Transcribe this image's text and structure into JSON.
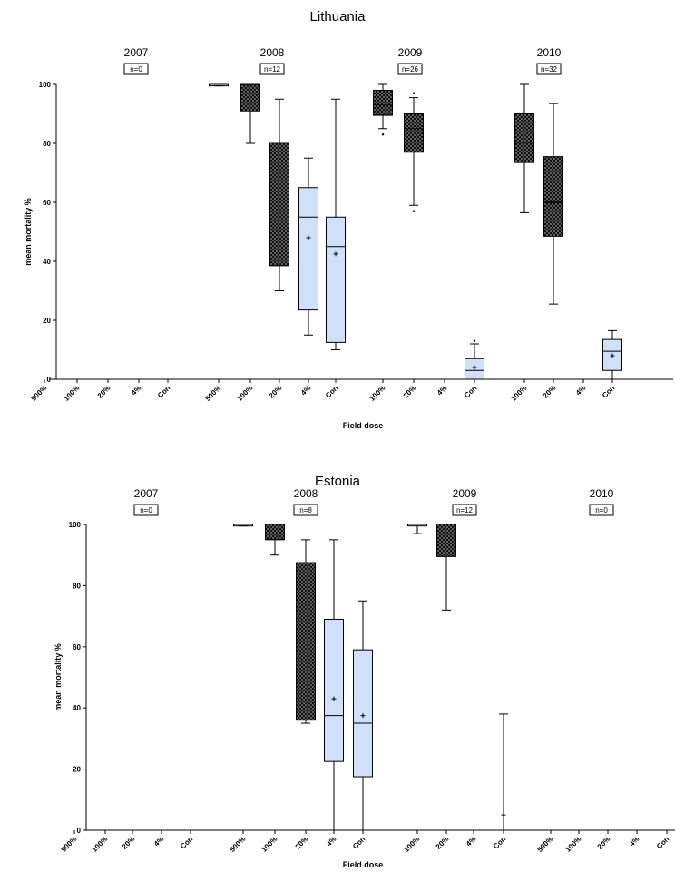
{
  "chart_data": [
    {
      "type": "box",
      "title": "Lithuania",
      "xlabel": "Field dose",
      "ylabel": "mean mortality %",
      "ylim": [
        0,
        100
      ],
      "yticks": [
        0,
        20,
        40,
        60,
        80,
        100
      ],
      "groups": [
        {
          "label": "2007",
          "n": "n=0",
          "categories": [
            "500%",
            "100%",
            "20%",
            "4%",
            "Con"
          ],
          "boxes": [
            null,
            null,
            null,
            null,
            null
          ]
        },
        {
          "label": "2008",
          "n": "n=12",
          "categories": [
            "500%",
            "100%",
            "20%",
            "4%",
            "Con"
          ],
          "boxes": [
            {
              "min": 99.5,
              "q1": 99.5,
              "median": 100,
              "q3": 100,
              "max": 100,
              "fill": "none"
            },
            {
              "min": 80,
              "q1": 91,
              "median": 100,
              "q3": 100,
              "max": 100,
              "fill": "dots"
            },
            {
              "min": 30,
              "q1": 38.5,
              "median": 80,
              "q3": 80,
              "max": 95,
              "fill": "dots"
            },
            {
              "min": 15,
              "q1": 23.5,
              "median": 55,
              "q3": 65,
              "max": 75,
              "mean": 48,
              "fill": "light"
            },
            {
              "min": 10,
              "q1": 12.5,
              "median": 45,
              "q3": 55,
              "max": 95,
              "mean": 42.5,
              "fill": "light"
            }
          ]
        },
        {
          "label": "2009",
          "n": "n=26",
          "categories": [
            "100%",
            "20%",
            "4%",
            "Con"
          ],
          "boxes": [
            {
              "min": 85,
              "q1": 89.5,
              "median": 93,
              "q3": 98,
              "max": 100,
              "outliers": [
                83
              ],
              "fill": "dots"
            },
            {
              "min": 59,
              "q1": 77,
              "median": 85,
              "q3": 90,
              "max": 95.5,
              "outliers": [
                57,
                97
              ],
              "fill": "dots"
            },
            null,
            {
              "min": 0,
              "q1": 0,
              "median": 3,
              "q3": 7,
              "max": 12,
              "mean": 4,
              "outliers": [
                13
              ],
              "fill": "light"
            }
          ]
        },
        {
          "label": "2010",
          "n": "n=32",
          "categories": [
            "100%",
            "20%",
            "4%",
            "Con"
          ],
          "boxes": [
            {
              "min": 56.5,
              "q1": 73.5,
              "median": 80,
              "q3": 90,
              "max": 100,
              "fill": "dots"
            },
            {
              "min": 25.5,
              "q1": 48.5,
              "median": 60,
              "q3": 75.5,
              "max": 93.5,
              "fill": "dots"
            },
            null,
            {
              "min": 0,
              "q1": 3,
              "median": 9.5,
              "q3": 13.5,
              "max": 16.5,
              "mean": 8,
              "fill": "light"
            }
          ]
        }
      ]
    },
    {
      "type": "box",
      "title": "Estonia",
      "xlabel": "Field dose",
      "ylabel": "mean mortality %",
      "ylim": [
        0,
        100
      ],
      "yticks": [
        0,
        20,
        40,
        60,
        80,
        100
      ],
      "groups": [
        {
          "label": "2007",
          "n": "n=0",
          "categories": [
            "500%",
            "100%",
            "20%",
            "4%",
            "Con"
          ],
          "boxes": [
            null,
            null,
            null,
            null,
            null
          ]
        },
        {
          "label": "2008",
          "n": "n=8",
          "categories": [
            "500%",
            "100%",
            "20%",
            "4%",
            "Con"
          ],
          "boxes": [
            {
              "min": 99.5,
              "q1": 99.5,
              "median": 100,
              "q3": 100,
              "max": 100,
              "fill": "none"
            },
            {
              "min": 90,
              "q1": 95,
              "median": 100,
              "q3": 100,
              "max": 100,
              "fill": "dots"
            },
            {
              "min": 35,
              "q1": 36,
              "median": 87.5,
              "q3": 87.5,
              "max": 95,
              "fill": "dots"
            },
            {
              "min": 0,
              "q1": 22.5,
              "median": 37.5,
              "q3": 69,
              "max": 95,
              "mean": 43,
              "fill": "light"
            },
            {
              "min": 0,
              "q1": 17.5,
              "median": 35,
              "q3": 59,
              "max": 75,
              "mean": 37.5,
              "fill": "light"
            }
          ]
        },
        {
          "label": "2009",
          "n": "n=12",
          "categories": [
            "100%",
            "20%",
            "4%",
            "Con"
          ],
          "boxes": [
            {
              "min": 97,
              "q1": 99.5,
              "median": 100,
              "q3": 100,
              "max": 100,
              "fill": "none"
            },
            {
              "min": 72,
              "q1": 89.5,
              "median": 100,
              "q3": 100,
              "max": 100,
              "fill": "dots"
            },
            null,
            {
              "min": 0,
              "q1": 0,
              "median": 0,
              "q3": 0,
              "max": 38,
              "mean": 5,
              "fill": "none"
            }
          ]
        },
        {
          "label": "2010",
          "n": "n=0",
          "categories": [
            "500%",
            "100%",
            "20%",
            "4%",
            "Con"
          ],
          "boxes": [
            {
              "min": 0,
              "q1": 0,
              "median": 0,
              "q3": 0,
              "max": 0,
              "fill": "none"
            },
            {
              "min": 0,
              "q1": 0,
              "median": 0,
              "q3": 0,
              "max": 0,
              "fill": "none"
            },
            {
              "min": 0,
              "q1": 0,
              "median": 0,
              "q3": 0,
              "max": 0,
              "fill": "none"
            },
            {
              "min": 0,
              "q1": 0,
              "median": 0,
              "q3": 0,
              "max": 0,
              "fill": "none"
            },
            {
              "min": 0,
              "q1": 0,
              "median": 0,
              "q3": 0,
              "max": 0,
              "fill": "none"
            }
          ]
        }
      ]
    }
  ],
  "colors": {
    "light_fill": "#cfe0f8",
    "dark_fill": "#111111",
    "ink": "#000000"
  }
}
